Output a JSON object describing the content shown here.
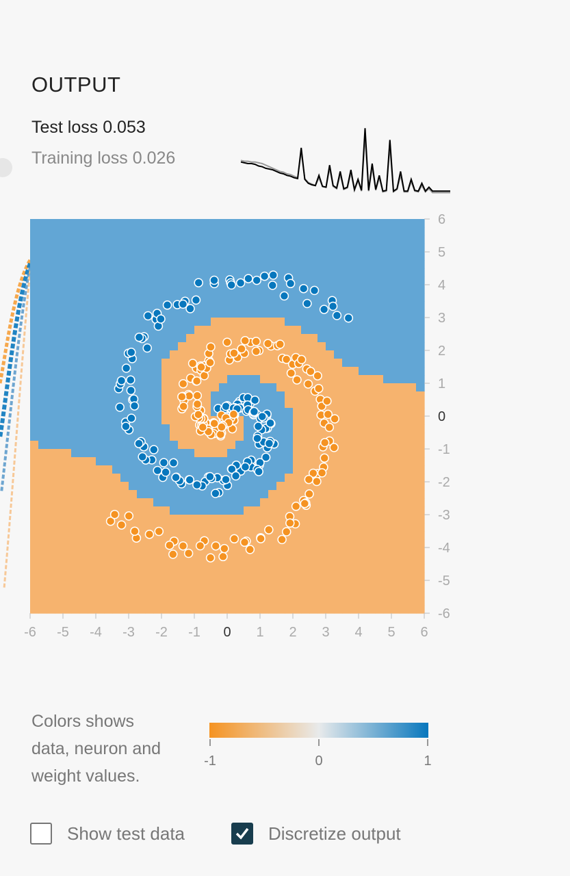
{
  "output": {
    "title": "OUTPUT",
    "test_loss_label": "Test loss 0.053",
    "training_loss_label": "Training loss 0.026"
  },
  "legend": {
    "lines": [
      "Colors shows",
      "data, neuron and",
      "weight values."
    ],
    "ticks": [
      "-1",
      "0",
      "1"
    ],
    "colors": {
      "negative": "#f59322",
      "neutral": "#e8eaeb",
      "positive": "#0877bd"
    }
  },
  "checkboxes": [
    {
      "label": "Show test data",
      "checked": false
    },
    {
      "label": "Discretize output",
      "checked": true
    }
  ],
  "colors": {
    "orange_region": "#f6b36e",
    "blue_region": "#62a6d5",
    "orange_point": "#f59322",
    "blue_point": "#0877bd"
  },
  "chart_data": {
    "type": "scatter",
    "x_ticks": [
      "-6",
      "-5",
      "-4",
      "-3",
      "-2",
      "-1",
      "0",
      "1",
      "2",
      "3",
      "4",
      "5",
      "6"
    ],
    "y_ticks": [
      "6",
      "5",
      "4",
      "3",
      "2",
      "1",
      "0",
      "-1",
      "-2",
      "-3",
      "-4",
      "-5",
      "-6"
    ],
    "xlim": [
      -6,
      6
    ],
    "ylim": [
      -6,
      6
    ],
    "series": [
      {
        "class": "orange",
        "color": "#f59322"
      },
      {
        "class": "blue",
        "color": "#0877bd"
      }
    ],
    "spiral": {
      "turns_radians": 7.2,
      "max_radius": 4.6
    }
  },
  "loss_chart": {
    "test_loss": [
      0.42,
      0.41,
      0.4,
      0.4,
      0.39,
      0.37,
      0.36,
      0.34,
      0.33,
      0.32,
      0.3,
      0.28,
      0.27,
      0.25,
      0.24,
      0.22,
      0.21,
      0.6,
      0.2,
      0.15,
      0.13,
      0.12,
      0.25,
      0.11,
      0.1,
      0.38,
      0.12,
      0.09,
      0.3,
      0.08,
      0.1,
      0.32,
      0.07,
      0.2,
      0.06,
      0.85,
      0.06,
      0.4,
      0.07,
      0.25,
      0.05,
      0.06,
      0.7,
      0.05,
      0.08,
      0.3,
      0.05,
      0.05,
      0.2,
      0.06,
      0.05,
      0.15,
      0.05,
      0.1,
      0.05,
      0.05,
      0.05,
      0.05,
      0.05,
      0.05
    ],
    "training_loss": [
      0.44,
      0.43,
      0.43,
      0.42,
      0.42,
      0.41,
      0.4,
      0.38,
      0.36,
      0.34,
      0.32,
      0.3,
      0.29,
      0.27,
      0.26,
      0.24,
      0.22,
      0.55,
      0.21,
      0.16,
      0.14,
      0.12,
      0.22,
      0.11,
      0.1,
      0.34,
      0.11,
      0.08,
      0.26,
      0.07,
      0.09,
      0.28,
      0.06,
      0.18,
      0.05,
      0.75,
      0.05,
      0.35,
      0.06,
      0.22,
      0.04,
      0.05,
      0.62,
      0.04,
      0.07,
      0.25,
      0.04,
      0.04,
      0.17,
      0.05,
      0.04,
      0.12,
      0.04,
      0.08,
      0.03,
      0.03,
      0.03,
      0.03,
      0.03,
      0.03
    ]
  }
}
